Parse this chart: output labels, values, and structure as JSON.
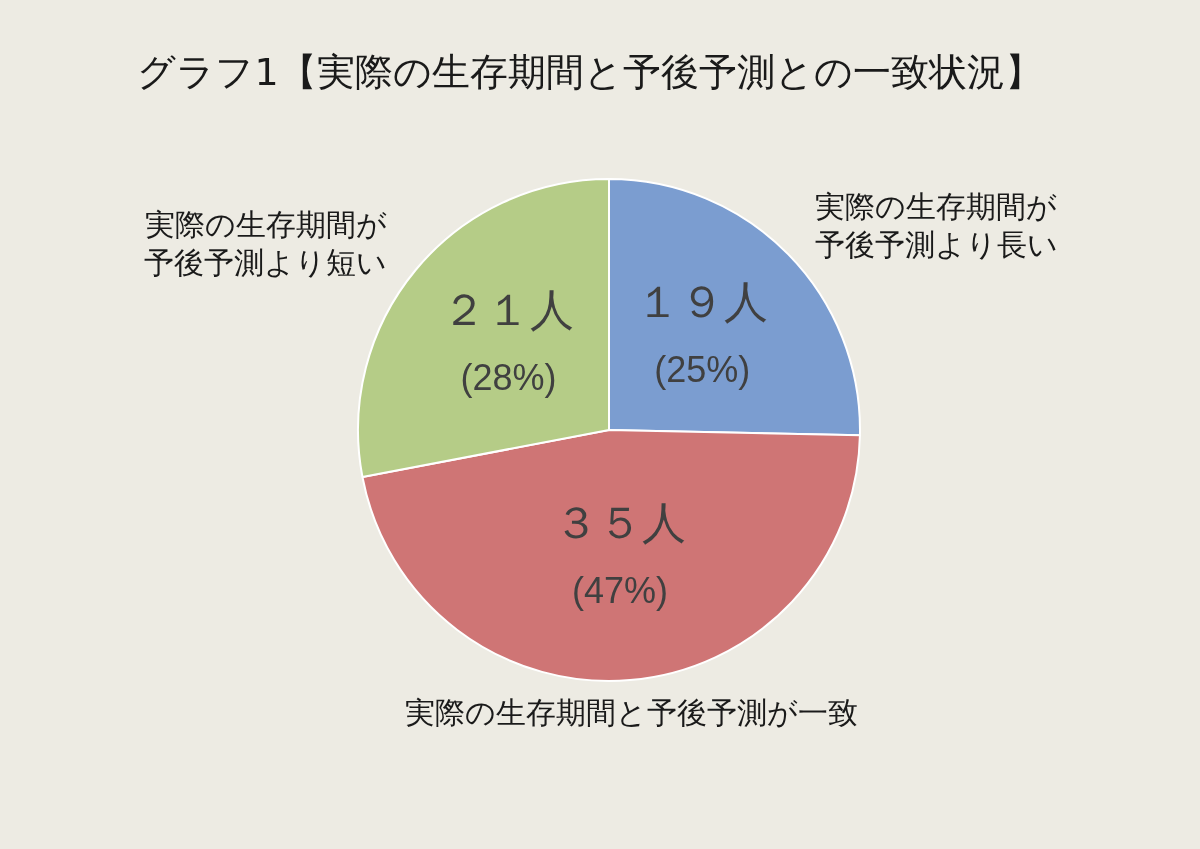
{
  "chart_data": {
    "type": "pie",
    "title": "グラフ1【実際の生存期間と予後予測との一致状況】",
    "categories": [
      "実際の生存期間が予後予測より長い",
      "実際の生存期間と予後予測が一致",
      "実際の生存期間が予後予測より短い"
    ],
    "values": [
      19,
      35,
      21
    ],
    "colors": [
      "#7b9dd0",
      "#cf7575",
      "#b5cc87"
    ],
    "value_labels": [
      "１９人\n(25%)",
      "３５人\n(47%)",
      "２１人\n(28%)"
    ],
    "legend": false
  }
}
